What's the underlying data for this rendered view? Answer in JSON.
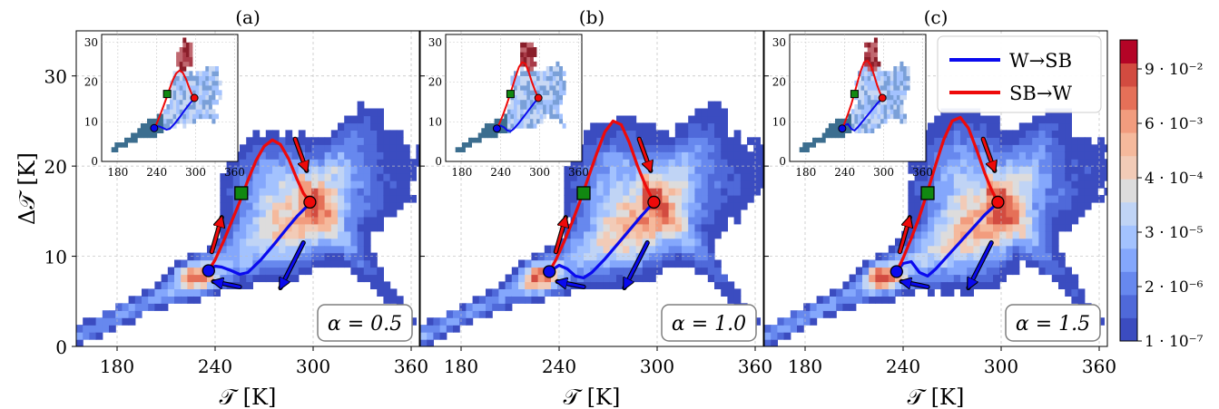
{
  "chart_data": [
    {
      "type": "heatmap",
      "panel_label": "(a)",
      "alpha_label": "α = 0.5",
      "xlabel": "𝒯 [K]",
      "ylabel": "Δ𝒯 [K]",
      "xlim": [
        155,
        365
      ],
      "ylim": [
        0,
        35
      ],
      "xticks": [
        "180",
        "240",
        "300",
        "360"
      ],
      "yticks": [
        "0",
        "10",
        "20",
        "30"
      ],
      "grid": true,
      "series": [
        {
          "name": "W→SB",
          "color": "#0a0aee",
          "x": [
            236,
            240,
            244,
            250,
            255,
            260,
            268,
            276,
            284,
            290,
            296,
            298
          ],
          "y": [
            8.4,
            8.9,
            8.8,
            8.4,
            8.0,
            8.2,
            9.6,
            11.3,
            13.1,
            14.4,
            15.5,
            16.0
          ]
        },
        {
          "name": "SB→W",
          "color": "#ee0a0a",
          "x": [
            236,
            240,
            245,
            250,
            255,
            260,
            265,
            270,
            275,
            280,
            285,
            290,
            294,
            298
          ],
          "y": [
            8.4,
            9.6,
            11.6,
            13.8,
            16.0,
            18.4,
            20.6,
            22.2,
            22.9,
            22.4,
            20.8,
            18.6,
            17.0,
            16.0
          ]
        }
      ],
      "markers": {
        "blue_circle": [
          236,
          8.4
        ],
        "red_circle": [
          298,
          16.0
        ],
        "green_square": [
          256,
          17.0
        ]
      },
      "inset": {
        "xticks": [
          "180",
          "240",
          "300",
          "360"
        ],
        "yticks": [
          "0",
          "10",
          "20",
          "30"
        ],
        "xlim": [
          155,
          365
        ],
        "ylim": [
          0,
          32
        ]
      }
    },
    {
      "type": "heatmap",
      "panel_label": "(b)",
      "alpha_label": "α = 1.0",
      "xlabel": "𝒯 [K]",
      "ylabel": "",
      "xlim": [
        155,
        365
      ],
      "ylim": [
        0,
        35
      ],
      "xticks": [
        "180",
        "240",
        "300",
        "360"
      ],
      "yticks": [],
      "grid": true,
      "series": [
        {
          "name": "W→SB",
          "color": "#0a0aee",
          "x": [
            234,
            240,
            245,
            250,
            255,
            260,
            268,
            276,
            284,
            290,
            296,
            298
          ],
          "y": [
            8.3,
            9.0,
            8.6,
            7.8,
            7.6,
            8.2,
            9.7,
            11.4,
            13.1,
            14.4,
            15.6,
            16.0
          ]
        },
        {
          "name": "SB→W",
          "color": "#ee0a0a",
          "x": [
            234,
            238,
            243,
            248,
            253,
            258,
            263,
            268,
            273,
            278,
            283,
            288,
            293,
            298
          ],
          "y": [
            8.3,
            9.6,
            11.6,
            13.8,
            16.2,
            18.8,
            21.4,
            23.8,
            25.0,
            24.6,
            22.6,
            20.0,
            17.8,
            16.0
          ]
        }
      ],
      "markers": {
        "blue_circle": [
          234,
          8.3
        ],
        "red_circle": [
          298,
          16.0
        ],
        "green_square": [
          255,
          17.0
        ]
      },
      "inset": {
        "xticks": [
          "180",
          "240",
          "300",
          "360"
        ],
        "yticks": [
          "0",
          "10",
          "20",
          "30"
        ],
        "xlim": [
          155,
          365
        ],
        "ylim": [
          0,
          32
        ]
      }
    },
    {
      "type": "heatmap",
      "panel_label": "(c)",
      "alpha_label": "α = 1.5",
      "xlabel": "𝒯 [K]",
      "ylabel": "",
      "xlim": [
        155,
        365
      ],
      "ylim": [
        0,
        35
      ],
      "xticks": [
        "180",
        "240",
        "300",
        "360"
      ],
      "yticks": [],
      "grid": true,
      "series": [
        {
          "name": "W→SB",
          "color": "#0a0aee",
          "x": [
            236,
            240,
            245,
            250,
            255,
            260,
            268,
            276,
            284,
            290,
            296,
            298
          ],
          "y": [
            8.3,
            9.2,
            9.4,
            8.2,
            7.8,
            8.6,
            10.2,
            11.8,
            13.4,
            14.6,
            15.6,
            16.0
          ]
        },
        {
          "name": "SB→W",
          "color": "#ee0a0a",
          "x": [
            236,
            240,
            245,
            250,
            255,
            260,
            265,
            270,
            275,
            280,
            285,
            290,
            294,
            298
          ],
          "y": [
            8.3,
            9.8,
            12.0,
            14.4,
            17.2,
            20.2,
            23.0,
            25.0,
            25.4,
            24.2,
            21.8,
            19.2,
            17.4,
            16.0
          ]
        }
      ],
      "markers": {
        "blue_circle": [
          236,
          8.3
        ],
        "red_circle": [
          298,
          16.0
        ],
        "green_square": [
          255,
          17.0
        ]
      },
      "inset": {
        "xticks": [
          "180",
          "240",
          "300",
          "360"
        ],
        "yticks": [
          "0",
          "10",
          "20",
          "30"
        ],
        "xlim": [
          155,
          365
        ],
        "ylim": [
          0,
          32
        ]
      }
    }
  ],
  "legend": {
    "placement": "top-right of panel (c)",
    "entries": [
      {
        "label": "W→SB",
        "color": "#0a0aee"
      },
      {
        "label": "SB→W",
        "color": "#ee0a0a"
      }
    ]
  },
  "colorbar": {
    "ticks": [
      "9 · 10⁻²",
      "6 · 10⁻³",
      "4 · 10⁻⁴",
      "3 · 10⁻⁵",
      "2 · 10⁻⁶",
      "1 · 10⁻⁷"
    ],
    "colors": [
      "#3b4cc0",
      "#4f69d9",
      "#6788ee",
      "#84a7fc",
      "#a3c2fe",
      "#c0d4f5",
      "#dddcdc",
      "#f2cbb7",
      "#f5b99c",
      "#f29c7e",
      "#e57058",
      "#d24b40",
      "#b40426"
    ]
  }
}
